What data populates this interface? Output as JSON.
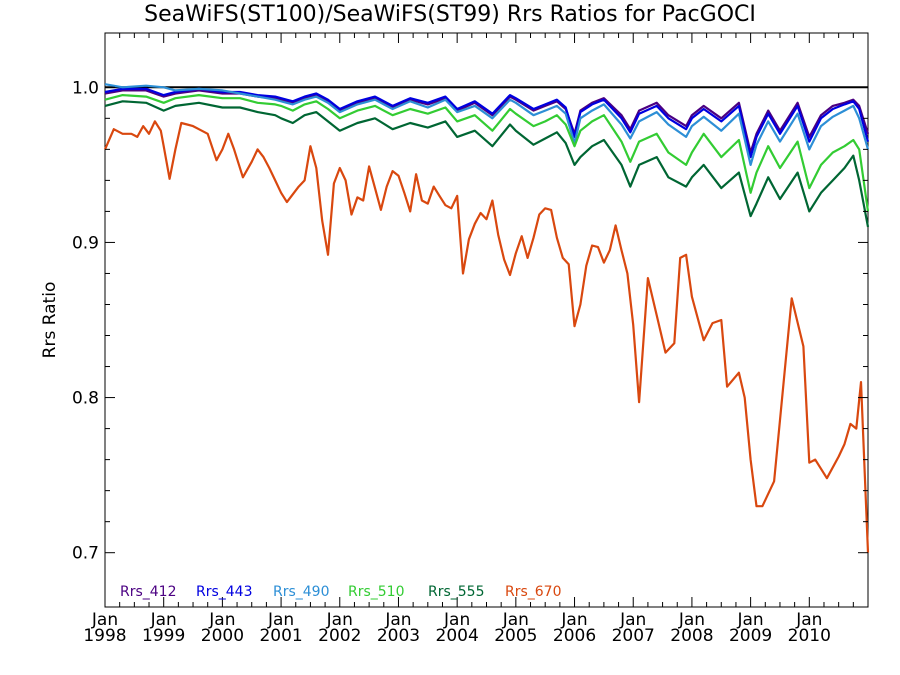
{
  "chart_data": {
    "type": "line",
    "title": "SeaWiFS(ST100)/SeaWiFS(ST99)  Rrs Ratios for PacGOCI",
    "xlabel": "",
    "ylabel": "Rrs Ratio",
    "xlim": [
      1998.0,
      2011.0
    ],
    "ylim": [
      0.665,
      1.035
    ],
    "reference_line": 1.0,
    "yticks": [
      0.7,
      0.8,
      0.9,
      1.0
    ],
    "ytick_labels": [
      "0.7",
      "0.8",
      "0.9",
      "1.0"
    ],
    "xticks": [
      {
        "top": "Jan",
        "bottom": "1998",
        "x": 1998
      },
      {
        "top": "Jan",
        "bottom": "1999",
        "x": 1999
      },
      {
        "top": "Jan",
        "bottom": "2000",
        "x": 2000
      },
      {
        "top": "Jan",
        "bottom": "2001",
        "x": 2001
      },
      {
        "top": "Jan",
        "bottom": "2002",
        "x": 2002
      },
      {
        "top": "Jan",
        "bottom": "2003",
        "x": 2003
      },
      {
        "top": "Jan",
        "bottom": "2004",
        "x": 2004
      },
      {
        "top": "Jan",
        "bottom": "2005",
        "x": 2005
      },
      {
        "top": "Jan",
        "bottom": "2006",
        "x": 2006
      },
      {
        "top": "Jan",
        "bottom": "2007",
        "x": 2007
      },
      {
        "top": "Jan",
        "bottom": "2008",
        "x": 2008
      },
      {
        "top": "Jan",
        "bottom": "2009",
        "x": 2009
      },
      {
        "top": "Jan",
        "bottom": "2010",
        "x": 2010
      }
    ],
    "legend_position": "bottom-left",
    "series": [
      {
        "name": "Rrs_412",
        "color": "#4b0082",
        "x": [
          1998.0,
          1998.3,
          1998.7,
          1999.0,
          1999.2,
          1999.6,
          2000.0,
          2000.3,
          2000.6,
          2000.9,
          2001.0,
          2001.2,
          2001.4,
          2001.6,
          2001.8,
          2002.0,
          2002.3,
          2002.6,
          2002.9,
          2003.2,
          2003.5,
          2003.8,
          2004.0,
          2004.3,
          2004.6,
          2004.9,
          2005.0,
          2005.3,
          2005.5,
          2005.7,
          2005.85,
          2006.0,
          2006.1,
          2006.3,
          2006.5,
          2006.8,
          2006.95,
          2007.1,
          2007.4,
          2007.6,
          2007.9,
          2008.0,
          2008.2,
          2008.5,
          2008.8,
          2009.0,
          2009.1,
          2009.3,
          2009.5,
          2009.8,
          2010.0,
          2010.2,
          2010.4,
          2010.6,
          2010.75,
          2010.85,
          2011.0
        ],
        "y": [
          0.996,
          0.998,
          0.998,
          0.994,
          0.996,
          0.998,
          0.996,
          0.996,
          0.994,
          0.993,
          0.992,
          0.99,
          0.993,
          0.995,
          0.991,
          0.985,
          0.99,
          0.993,
          0.987,
          0.992,
          0.989,
          0.993,
          0.985,
          0.99,
          0.982,
          0.994,
          0.992,
          0.985,
          0.988,
          0.991,
          0.986,
          0.97,
          0.985,
          0.99,
          0.993,
          0.982,
          0.973,
          0.985,
          0.99,
          0.982,
          0.975,
          0.982,
          0.988,
          0.98,
          0.99,
          0.958,
          0.97,
          0.985,
          0.972,
          0.99,
          0.968,
          0.982,
          0.988,
          0.99,
          0.992,
          0.988,
          0.97
        ]
      },
      {
        "name": "Rrs_443",
        "color": "#0000e0",
        "x": [
          1998.0,
          1998.3,
          1998.7,
          1999.0,
          1999.2,
          1999.6,
          2000.0,
          2000.3,
          2000.6,
          2000.9,
          2001.0,
          2001.2,
          2001.4,
          2001.6,
          2001.8,
          2002.0,
          2002.3,
          2002.6,
          2002.9,
          2003.2,
          2003.5,
          2003.8,
          2004.0,
          2004.3,
          2004.6,
          2004.9,
          2005.0,
          2005.3,
          2005.5,
          2005.7,
          2005.85,
          2006.0,
          2006.1,
          2006.3,
          2006.5,
          2006.8,
          2006.95,
          2007.1,
          2007.4,
          2007.6,
          2007.9,
          2008.0,
          2008.2,
          2008.5,
          2008.8,
          2009.0,
          2009.1,
          2009.3,
          2009.5,
          2009.8,
          2010.0,
          2010.2,
          2010.4,
          2010.6,
          2010.75,
          2010.85,
          2011.0
        ],
        "y": [
          0.997,
          0.999,
          0.999,
          0.995,
          0.997,
          0.999,
          0.997,
          0.997,
          0.995,
          0.994,
          0.993,
          0.991,
          0.994,
          0.996,
          0.992,
          0.986,
          0.991,
          0.994,
          0.988,
          0.993,
          0.99,
          0.994,
          0.986,
          0.991,
          0.983,
          0.995,
          0.993,
          0.986,
          0.989,
          0.992,
          0.987,
          0.968,
          0.984,
          0.989,
          0.992,
          0.98,
          0.971,
          0.983,
          0.988,
          0.98,
          0.973,
          0.98,
          0.986,
          0.978,
          0.988,
          0.955,
          0.968,
          0.983,
          0.97,
          0.988,
          0.965,
          0.98,
          0.986,
          0.989,
          0.991,
          0.986,
          0.965
        ]
      },
      {
        "name": "Rrs_490",
        "color": "#2d8fd6",
        "x": [
          1998.0,
          1998.3,
          1998.7,
          1999.0,
          1999.2,
          1999.6,
          2000.0,
          2000.3,
          2000.6,
          2000.9,
          2001.0,
          2001.2,
          2001.4,
          2001.6,
          2001.8,
          2002.0,
          2002.3,
          2002.6,
          2002.9,
          2003.2,
          2003.5,
          2003.8,
          2004.0,
          2004.3,
          2004.6,
          2004.9,
          2005.0,
          2005.3,
          2005.5,
          2005.7,
          2005.85,
          2006.0,
          2006.1,
          2006.3,
          2006.5,
          2006.8,
          2006.95,
          2007.1,
          2007.4,
          2007.6,
          2007.9,
          2008.0,
          2008.2,
          2008.5,
          2008.8,
          2009.0,
          2009.1,
          2009.3,
          2009.5,
          2009.8,
          2010.0,
          2010.2,
          2010.4,
          2010.6,
          2010.75,
          2010.85,
          2011.0
        ],
        "y": [
          1.002,
          1.0,
          1.001,
          1.0,
          0.998,
          0.999,
          0.998,
          0.996,
          0.994,
          0.992,
          0.991,
          0.989,
          0.992,
          0.994,
          0.99,
          0.984,
          0.989,
          0.992,
          0.986,
          0.991,
          0.987,
          0.992,
          0.984,
          0.988,
          0.98,
          0.992,
          0.99,
          0.982,
          0.985,
          0.988,
          0.983,
          0.964,
          0.98,
          0.985,
          0.989,
          0.976,
          0.967,
          0.978,
          0.984,
          0.976,
          0.968,
          0.975,
          0.981,
          0.972,
          0.983,
          0.95,
          0.963,
          0.978,
          0.965,
          0.983,
          0.96,
          0.975,
          0.981,
          0.985,
          0.988,
          0.98,
          0.96
        ]
      },
      {
        "name": "Rrs_510",
        "color": "#33cc33",
        "x": [
          1998.0,
          1998.3,
          1998.7,
          1999.0,
          1999.2,
          1999.6,
          2000.0,
          2000.3,
          2000.6,
          2000.9,
          2001.0,
          2001.2,
          2001.4,
          2001.6,
          2001.8,
          2002.0,
          2002.3,
          2002.6,
          2002.9,
          2003.2,
          2003.5,
          2003.8,
          2004.0,
          2004.3,
          2004.6,
          2004.9,
          2005.0,
          2005.3,
          2005.5,
          2005.7,
          2005.85,
          2006.0,
          2006.1,
          2006.3,
          2006.5,
          2006.8,
          2006.95,
          2007.1,
          2007.4,
          2007.6,
          2007.9,
          2008.0,
          2008.2,
          2008.5,
          2008.8,
          2009.0,
          2009.1,
          2009.3,
          2009.5,
          2009.8,
          2010.0,
          2010.2,
          2010.4,
          2010.6,
          2010.75,
          2010.85,
          2011.0
        ],
        "y": [
          0.992,
          0.995,
          0.994,
          0.99,
          0.993,
          0.995,
          0.993,
          0.993,
          0.99,
          0.989,
          0.988,
          0.985,
          0.989,
          0.991,
          0.986,
          0.98,
          0.985,
          0.988,
          0.982,
          0.986,
          0.983,
          0.987,
          0.978,
          0.982,
          0.972,
          0.986,
          0.983,
          0.975,
          0.978,
          0.982,
          0.976,
          0.962,
          0.972,
          0.978,
          0.982,
          0.965,
          0.952,
          0.965,
          0.97,
          0.958,
          0.95,
          0.958,
          0.97,
          0.955,
          0.966,
          0.932,
          0.945,
          0.962,
          0.948,
          0.965,
          0.935,
          0.95,
          0.958,
          0.962,
          0.966,
          0.96,
          0.92
        ]
      },
      {
        "name": "Rrs_555",
        "color": "#006633",
        "x": [
          1998.0,
          1998.3,
          1998.7,
          1999.0,
          1999.2,
          1999.6,
          2000.0,
          2000.3,
          2000.6,
          2000.9,
          2001.0,
          2001.2,
          2001.4,
          2001.6,
          2001.8,
          2002.0,
          2002.3,
          2002.6,
          2002.9,
          2003.2,
          2003.5,
          2003.8,
          2004.0,
          2004.3,
          2004.6,
          2004.9,
          2005.0,
          2005.3,
          2005.5,
          2005.7,
          2005.85,
          2006.0,
          2006.1,
          2006.3,
          2006.5,
          2006.8,
          2006.95,
          2007.1,
          2007.4,
          2007.6,
          2007.9,
          2008.0,
          2008.2,
          2008.5,
          2008.8,
          2009.0,
          2009.1,
          2009.3,
          2009.5,
          2009.8,
          2010.0,
          2010.2,
          2010.4,
          2010.6,
          2010.75,
          2010.85,
          2011.0
        ],
        "y": [
          0.988,
          0.991,
          0.99,
          0.985,
          0.988,
          0.99,
          0.987,
          0.987,
          0.984,
          0.982,
          0.98,
          0.977,
          0.982,
          0.984,
          0.978,
          0.972,
          0.977,
          0.98,
          0.973,
          0.977,
          0.974,
          0.978,
          0.968,
          0.972,
          0.962,
          0.976,
          0.972,
          0.963,
          0.967,
          0.971,
          0.964,
          0.95,
          0.955,
          0.962,
          0.966,
          0.95,
          0.936,
          0.95,
          0.955,
          0.942,
          0.936,
          0.942,
          0.95,
          0.935,
          0.945,
          0.917,
          0.925,
          0.942,
          0.928,
          0.945,
          0.92,
          0.932,
          0.94,
          0.948,
          0.956,
          0.94,
          0.91
        ]
      },
      {
        "name": "Rrs_670",
        "color": "#d9480f",
        "x": [
          1998.0,
          1998.15,
          1998.3,
          1998.45,
          1998.55,
          1998.65,
          1998.75,
          1998.85,
          1998.95,
          1999.0,
          1999.1,
          1999.2,
          1999.3,
          1999.4,
          1999.5,
          1999.6,
          1999.75,
          1999.9,
          2000.0,
          2000.1,
          2000.2,
          2000.35,
          2000.5,
          2000.6,
          2000.7,
          2000.8,
          2000.9,
          2001.0,
          2001.1,
          2001.2,
          2001.3,
          2001.4,
          2001.5,
          2001.6,
          2001.7,
          2001.8,
          2001.9,
          2002.0,
          2002.1,
          2002.2,
          2002.3,
          2002.4,
          2002.5,
          2002.6,
          2002.7,
          2002.8,
          2002.9,
          2003.0,
          2003.1,
          2003.2,
          2003.3,
          2003.4,
          2003.5,
          2003.6,
          2003.7,
          2003.8,
          2003.9,
          2004.0,
          2004.1,
          2004.2,
          2004.3,
          2004.4,
          2004.5,
          2004.6,
          2004.7,
          2004.8,
          2004.9,
          2005.0,
          2005.1,
          2005.2,
          2005.3,
          2005.4,
          2005.5,
          2005.6,
          2005.7,
          2005.8,
          2005.9,
          2006.0,
          2006.1,
          2006.2,
          2006.3,
          2006.4,
          2006.5,
          2006.6,
          2006.7,
          2006.8,
          2006.9,
          2007.0,
          2007.1,
          2007.25,
          2007.4,
          2007.55,
          2007.7,
          2007.8,
          2007.9,
          2008.0,
          2008.2,
          2008.35,
          2008.5,
          2008.6,
          2008.8,
          2008.9,
          2009.0,
          2009.1,
          2009.2,
          2009.4,
          2009.7,
          2009.9,
          2010.0,
          2010.1,
          2010.3,
          2010.5,
          2010.6,
          2010.7,
          2010.8,
          2010.88,
          2011.0
        ],
        "y": [
          0.96,
          0.973,
          0.97,
          0.97,
          0.968,
          0.975,
          0.97,
          0.978,
          0.972,
          0.962,
          0.941,
          0.96,
          0.977,
          0.976,
          0.975,
          0.973,
          0.97,
          0.953,
          0.96,
          0.97,
          0.96,
          0.942,
          0.952,
          0.96,
          0.955,
          0.948,
          0.94,
          0.932,
          0.926,
          0.931,
          0.936,
          0.94,
          0.962,
          0.948,
          0.914,
          0.892,
          0.938,
          0.948,
          0.94,
          0.918,
          0.929,
          0.927,
          0.949,
          0.935,
          0.921,
          0.936,
          0.946,
          0.943,
          0.932,
          0.92,
          0.944,
          0.927,
          0.925,
          0.936,
          0.93,
          0.924,
          0.922,
          0.93,
          0.88,
          0.902,
          0.912,
          0.919,
          0.915,
          0.927,
          0.905,
          0.889,
          0.879,
          0.893,
          0.904,
          0.89,
          0.903,
          0.918,
          0.922,
          0.921,
          0.903,
          0.89,
          0.886,
          0.846,
          0.86,
          0.885,
          0.898,
          0.897,
          0.887,
          0.895,
          0.911,
          0.895,
          0.88,
          0.847,
          0.797,
          0.877,
          0.853,
          0.829,
          0.835,
          0.89,
          0.892,
          0.865,
          0.837,
          0.848,
          0.85,
          0.807,
          0.816,
          0.8,
          0.76,
          0.73,
          0.73,
          0.746,
          0.864,
          0.833,
          0.758,
          0.76,
          0.748,
          0.762,
          0.77,
          0.783,
          0.78,
          0.81,
          0.7
        ]
      }
    ]
  }
}
